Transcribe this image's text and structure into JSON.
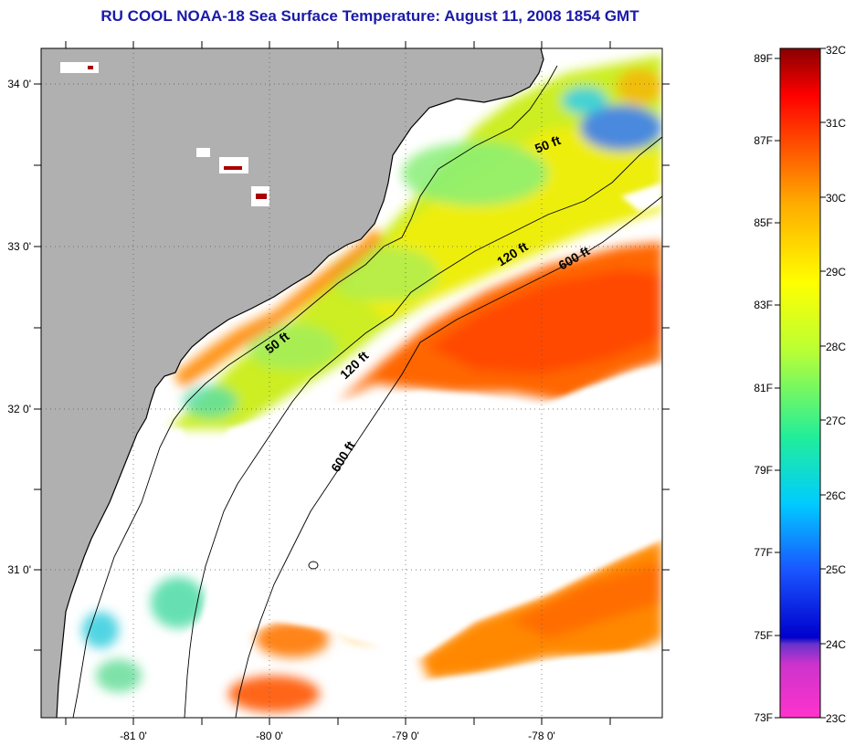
{
  "title": "RU COOL  NOAA-18  Sea Surface Temperature:  August 11, 2008 1854 GMT",
  "map": {
    "lon_labels": [
      "-81 0'",
      "-80 0'",
      "-79 0'",
      "-78 0'"
    ],
    "lat_labels": [
      "34 0'",
      "33 0'",
      "32 0'",
      "31 0'"
    ],
    "depth_contours": {
      "label_50_upper": "50 ft",
      "label_120_upper": "120 ft",
      "label_600_upper": "600 ft",
      "label_50_lower": "50 ft",
      "label_120_lower": "120 ft",
      "label_600_lower": "600 ft"
    },
    "colors": {
      "land": "#b0b0b0",
      "cloud": "#ffffff",
      "coastline": "#000000"
    }
  },
  "colorbar": {
    "fahrenheit_labels": [
      "89F",
      "87F",
      "85F",
      "83F",
      "81F",
      "79F",
      "77F",
      "75F",
      "73F"
    ],
    "celsius_labels": [
      "32C",
      "31C",
      "30C",
      "29C",
      "28C",
      "27C",
      "26C",
      "25C",
      "24C",
      "23C"
    ],
    "range_c": [
      23,
      32
    ],
    "range_f": [
      73,
      89
    ],
    "colors": [
      "#ff33cc",
      "#9933cc",
      "#0000cc",
      "#1a66ff",
      "#00ccff",
      "#33ee99",
      "#99ee33",
      "#ffff00",
      "#ffaa00",
      "#ff5500",
      "#ff0000",
      "#990000"
    ]
  }
}
